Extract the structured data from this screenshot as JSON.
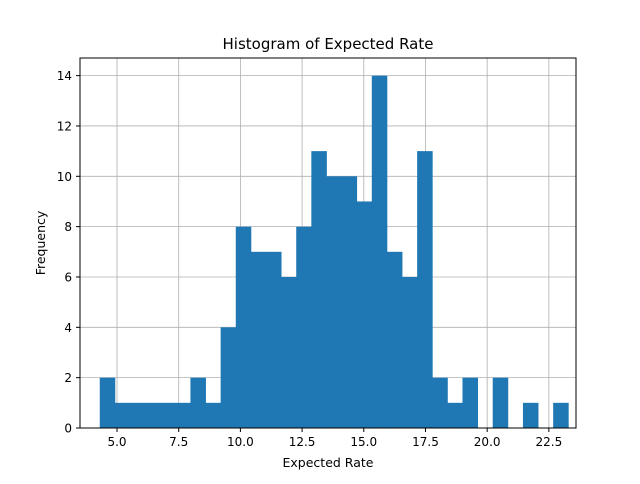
{
  "chart_data": {
    "type": "histogram",
    "title": "Histogram of Expected Rate",
    "xlabel": "Expected Rate",
    "ylabel": "Frequency",
    "xlim": [
      3.5,
      23.6
    ],
    "ylim": [
      0,
      14.7
    ],
    "bar_color": "#1f77b4",
    "grid": true,
    "x_ticks": [
      5.0,
      7.5,
      10.0,
      12.5,
      15.0,
      17.5,
      20.0,
      22.5
    ],
    "x_tick_labels": [
      "5.0",
      "7.5",
      "10.0",
      "12.5",
      "15.0",
      "17.5",
      "20.0",
      "22.5"
    ],
    "y_ticks": [
      0,
      2,
      4,
      6,
      8,
      10,
      12,
      14
    ],
    "y_tick_labels": [
      "0",
      "2",
      "4",
      "6",
      "8",
      "10",
      "12",
      "14"
    ],
    "bins": {
      "start": 4.3,
      "width": 0.6125,
      "counts": [
        2,
        1,
        1,
        1,
        1,
        1,
        2,
        1,
        4,
        8,
        7,
        7,
        6,
        8,
        11,
        10,
        10,
        9,
        14,
        7,
        6,
        11,
        2,
        1,
        2,
        0,
        2,
        0,
        1,
        0,
        1
      ]
    }
  }
}
